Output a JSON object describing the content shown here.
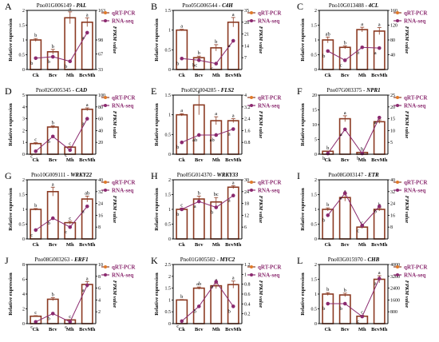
{
  "figure": {
    "legend": {
      "qrt": "qRT-PCR",
      "rna": "RNA-seq",
      "placement": "top-right"
    },
    "axis_left_label": "Relative expression",
    "axis_right_label": "FPKM value",
    "colors": {
      "bar_fill": "#ffffff",
      "bar_edge": "#8b3a22",
      "line": "#8b2a6f",
      "legend_text": "#8b2a6f",
      "label_text": "#8b2a6f"
    }
  },
  "chart_data": [
    {
      "type": "bar",
      "letter": "A",
      "gene_id": "Pno01G006149",
      "gene": "PAL",
      "categories": [
        "Ck",
        "Bcv",
        "Mh",
        "BcvMh"
      ],
      "series": [
        {
          "name": "qRT-PCR",
          "values": [
            1.0,
            0.6,
            1.75,
            1.6
          ],
          "errors": [
            0.05,
            0.08,
            0.2,
            0.15
          ],
          "letters": [
            "b",
            "b",
            "a",
            "a"
          ]
        },
        {
          "name": "RNA-seq",
          "values": [
            58,
            61,
            51,
            114
          ],
          "letters": [
            "b",
            "b",
            "b",
            "a"
          ]
        }
      ],
      "ylim_left": [
        0,
        2.0
      ],
      "yticks_left": [
        0,
        0.5,
        1.0,
        1.5,
        2.0
      ],
      "ylim_right": [
        33,
        163
      ],
      "yticks_right": [
        33,
        67,
        98,
        163
      ]
    },
    {
      "type": "bar",
      "letter": "B",
      "gene_id": "Pno05G006544",
      "gene": "C4H",
      "categories": [
        "Ck",
        "Bcv",
        "Mh",
        "BcvMh"
      ],
      "series": [
        {
          "name": "qRT-PCR",
          "values": [
            1.0,
            0.3,
            0.55,
            1.2
          ],
          "errors": [
            0.02,
            0.04,
            0.08,
            0.12
          ],
          "letters": [
            "a",
            "b",
            "b",
            "a"
          ]
        },
        {
          "name": "RNA-seq",
          "values": [
            6.5,
            5.5,
            3.5,
            17
          ],
          "letters": [
            "b",
            "bc",
            "c",
            "a"
          ]
        }
      ],
      "ylim_left": [
        0,
        1.5
      ],
      "yticks_left": [
        0,
        0.5,
        1.0,
        1.5
      ],
      "ylim_right": [
        0,
        35
      ],
      "yticks_right": [
        7,
        14,
        21,
        28,
        35
      ]
    },
    {
      "type": "bar",
      "letter": "C",
      "gene_id": "Pno10G013488",
      "gene": "4CL",
      "categories": [
        "Ck",
        "Bcv",
        "Mh",
        "BcvMh"
      ],
      "series": [
        {
          "name": "qRT-PCR",
          "values": [
            1.0,
            0.75,
            1.35,
            1.3
          ],
          "errors": [
            0.1,
            0.05,
            0.08,
            0.12
          ],
          "letters": [
            "ab",
            "b",
            "a",
            "a"
          ]
        },
        {
          "name": "RNA-seq",
          "values": [
            50,
            25,
            60,
            58
          ],
          "letters": [
            "b",
            "c",
            "a",
            "a"
          ]
        }
      ],
      "ylim_left": [
        0,
        2.0
      ],
      "yticks_left": [
        0,
        0.5,
        1.0,
        1.5,
        2.0
      ],
      "ylim_right": [
        0,
        160
      ],
      "yticks_right": [
        40,
        80,
        120,
        160
      ]
    },
    {
      "type": "bar",
      "letter": "D",
      "gene_id": "Pno02G005345",
      "gene": "CAD",
      "categories": [
        "Ck",
        "Bcv",
        "Mh",
        "BcvMh"
      ],
      "series": [
        {
          "name": "qRT-PCR",
          "values": [
            0.9,
            2.3,
            0.6,
            3.8
          ],
          "errors": [
            0.08,
            0.1,
            0.05,
            0.12
          ],
          "letters": [
            "c",
            "b",
            "c",
            "a"
          ]
        },
        {
          "name": "RNA-seq",
          "values": [
            5,
            30,
            7,
            60
          ],
          "letters": [
            "c",
            "b",
            "c",
            "a"
          ]
        }
      ],
      "ylim_left": [
        0,
        5
      ],
      "yticks_left": [
        0,
        1,
        2,
        3,
        4,
        5
      ],
      "ylim_right": [
        0,
        100
      ],
      "yticks_right": [
        20,
        40,
        60,
        80,
        100
      ]
    },
    {
      "type": "bar",
      "letter": "E",
      "gene_id": "Pno02G004285",
      "gene": "FLS2",
      "categories": [
        "Ck",
        "Bcv",
        "Mh",
        "BcvMh"
      ],
      "series": [
        {
          "name": "qRT-PCR",
          "values": [
            1.0,
            1.25,
            0.85,
            0.85
          ],
          "errors": [
            0.03,
            0.25,
            0.1,
            0.05
          ],
          "letters": [
            "a",
            "a",
            "a",
            "a"
          ]
        },
        {
          "name": "RNA-seq",
          "values": [
            0.8,
            1.3,
            1.3,
            1.7
          ],
          "letters": [
            "b",
            "ab",
            "ab",
            "a"
          ]
        }
      ],
      "ylim_left": [
        0,
        1.5
      ],
      "yticks_left": [
        0,
        0.5,
        1.0,
        1.5
      ],
      "ylim_right": [
        0,
        4.0
      ],
      "yticks_right": [
        0.8,
        1.6,
        2.4,
        3.2,
        4.0
      ]
    },
    {
      "type": "bar",
      "letter": "F",
      "gene_id": "Pno07G003375",
      "gene": "NPR1",
      "categories": [
        "Ck",
        "Bcv",
        "Mh",
        "BcvMh"
      ],
      "series": [
        {
          "name": "qRT-PCR",
          "values": [
            1.0,
            12.0,
            0.6,
            11.0
          ],
          "errors": [
            0.1,
            1.0,
            0.1,
            0.6
          ],
          "letters": [
            "b",
            "a",
            "b",
            "a"
          ]
        },
        {
          "name": "RNA-seq",
          "values": [
            0.3,
            10.5,
            0.3,
            15.5
          ],
          "letters": [
            "b",
            "a",
            "b",
            "a"
          ]
        }
      ],
      "ylim_left": [
        0,
        20
      ],
      "yticks_left": [
        0,
        5,
        10,
        15,
        20
      ],
      "ylim_right": [
        0,
        25
      ],
      "yticks_right": [
        5,
        10,
        15,
        20,
        25
      ]
    },
    {
      "type": "bar",
      "letter": "G",
      "gene_id": "Pno10G009111",
      "gene": "WRKY22",
      "categories": [
        "Ck",
        "Bcv",
        "Mh",
        "BcvMh"
      ],
      "series": [
        {
          "name": "qRT-PCR",
          "values": [
            1.0,
            1.6,
            0.55,
            1.35
          ],
          "errors": [
            0.03,
            0.15,
            0.05,
            0.1
          ],
          "letters": [
            "b",
            "a",
            "c",
            "ab"
          ]
        },
        {
          "name": "RNA-seq",
          "values": [
            6,
            14,
            8,
            22
          ],
          "letters": [
            "c",
            "b",
            "c",
            "a"
          ]
        }
      ],
      "ylim_left": [
        0,
        2.0
      ],
      "yticks_left": [
        0,
        0.5,
        1.0,
        1.5,
        2.0
      ],
      "ylim_right": [
        0,
        40
      ],
      "yticks_right": [
        8,
        16,
        24,
        32,
        40
      ]
    },
    {
      "type": "bar",
      "letter": "H",
      "gene_id": "Pno05G014370",
      "gene": "WRKY33",
      "categories": [
        "Ck",
        "Bcv",
        "Mh",
        "BcvMh"
      ],
      "series": [
        {
          "name": "qRT-PCR",
          "values": [
            1.0,
            1.35,
            1.25,
            1.75
          ],
          "errors": [
            0.04,
            0.1,
            0.15,
            0.05
          ],
          "letters": [
            "c",
            "b",
            "bc",
            "a"
          ]
        },
        {
          "name": "RNA-seq",
          "values": [
            15,
            19,
            16,
            22
          ],
          "letters": [
            "b",
            "a",
            "b",
            "a"
          ]
        }
      ],
      "ylim_left": [
        0,
        2.0
      ],
      "yticks_left": [
        0,
        0.5,
        1.0,
        1.5,
        2.0
      ],
      "ylim_right": [
        0,
        30
      ],
      "yticks_right": [
        6,
        12,
        18,
        24,
        30
      ]
    },
    {
      "type": "bar",
      "letter": "I",
      "gene_id": "Pno08G003147",
      "gene": "ETR",
      "categories": [
        "Ck",
        "Bcv",
        "Mh",
        "BcvMh"
      ],
      "series": [
        {
          "name": "qRT-PCR",
          "values": [
            1.0,
            1.4,
            0.4,
            1.0
          ],
          "errors": [
            0.05,
            0.12,
            0.05,
            0.05
          ],
          "letters": [
            "b",
            "a",
            "c",
            "b"
          ]
        },
        {
          "name": "RNA-seq",
          "values": [
            16,
            31,
            9,
            22
          ],
          "letters": [
            "b",
            "a",
            "c",
            "b"
          ]
        }
      ],
      "ylim_left": [
        0,
        2.0
      ],
      "yticks_left": [
        0,
        0.5,
        1.0,
        1.5,
        2.0
      ],
      "ylim_right": [
        0,
        40
      ],
      "yticks_right": [
        8,
        16,
        24,
        32,
        40
      ]
    },
    {
      "type": "bar",
      "letter": "J",
      "gene_id": "Pno08G003263",
      "gene": "ERF1",
      "categories": [
        "Ck",
        "Bcv",
        "Mh",
        "BcvMh"
      ],
      "series": [
        {
          "name": "qRT-PCR",
          "values": [
            1.0,
            3.3,
            0.5,
            5.3
          ],
          "errors": [
            0.08,
            0.2,
            0.05,
            0.4
          ],
          "letters": [
            "c",
            "b",
            "c",
            "a"
          ]
        },
        {
          "name": "RNA-seq",
          "values": [
            0.3,
            1.7,
            0.3,
            6.5
          ],
          "letters": [
            "c",
            "b",
            "c",
            "a"
          ]
        }
      ],
      "ylim_left": [
        0,
        8
      ],
      "yticks_left": [
        0,
        2,
        4,
        6,
        8
      ],
      "ylim_right": [
        0,
        10
      ],
      "yticks_right": [
        2,
        4,
        6,
        8,
        10
      ]
    },
    {
      "type": "bar",
      "letter": "K",
      "gene_id": "Pno01G005502",
      "gene": "MYC2",
      "categories": [
        "Ck",
        "Bcv",
        "Mh",
        "BcvMh"
      ],
      "series": [
        {
          "name": "qRT-PCR",
          "values": [
            1.0,
            1.5,
            1.6,
            1.65
          ],
          "errors": [
            0.02,
            0.05,
            0.12,
            0.15
          ],
          "letters": [
            "b",
            "ab",
            "a",
            "a"
          ]
        },
        {
          "name": "RNA-seq",
          "values": [
            0.05,
            0.35,
            0.85,
            0.35
          ],
          "letters": [
            "c",
            "b",
            "a",
            "b"
          ]
        }
      ],
      "ylim_left": [
        0,
        2.5
      ],
      "yticks_left": [
        0,
        0.5,
        1.0,
        1.5,
        2.0,
        2.5
      ],
      "ylim_right": [
        0,
        1.2
      ],
      "yticks_right": [
        0.2,
        0.4,
        0.6,
        0.8,
        1.0,
        1.2
      ]
    },
    {
      "type": "bar",
      "letter": "L",
      "gene_id": "Pno03G015970",
      "gene": "CHB",
      "categories": [
        "Ck",
        "Bcv",
        "Mh",
        "BcvMh"
      ],
      "series": [
        {
          "name": "qRT-PCR",
          "values": [
            1.0,
            0.97,
            0.25,
            1.5
          ],
          "errors": [
            0.05,
            0.06,
            0.03,
            0.12
          ],
          "letters": [
            "b",
            "b",
            "c",
            "a"
          ]
        },
        {
          "name": "RNA-seq",
          "values": [
            1350,
            1350,
            480,
            3050
          ],
          "letters": [
            "b",
            "b",
            "c",
            "a"
          ]
        }
      ],
      "ylim_left": [
        0,
        2.0
      ],
      "yticks_left": [
        0,
        0.5,
        1.0,
        1.5,
        2.0
      ],
      "ylim_right": [
        0,
        4000
      ],
      "yticks_right": [
        800,
        1600,
        2400,
        3200,
        4000
      ]
    }
  ]
}
